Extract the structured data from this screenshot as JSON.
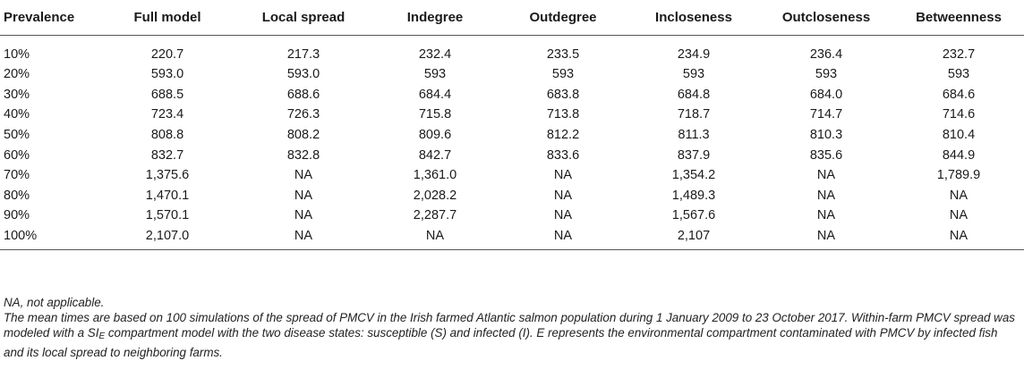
{
  "table": {
    "headers": [
      "Prevalence",
      "Full model",
      "Local spread",
      "Indegree",
      "Outdegree",
      "Incloseness",
      "Outcloseness",
      "Betweenness"
    ],
    "rows": [
      [
        "10%",
        "220.7",
        "217.3",
        "232.4",
        "233.5",
        "234.9",
        "236.4",
        "232.7"
      ],
      [
        "20%",
        "593.0",
        "593.0",
        "593",
        "593",
        "593",
        "593",
        "593"
      ],
      [
        "30%",
        "688.5",
        "688.6",
        "684.4",
        "683.8",
        "684.8",
        "684.0",
        "684.6"
      ],
      [
        "40%",
        "723.4",
        "726.3",
        "715.8",
        "713.8",
        "718.7",
        "714.7",
        "714.6"
      ],
      [
        "50%",
        "808.8",
        "808.2",
        "809.6",
        "812.2",
        "811.3",
        "810.3",
        "810.4"
      ],
      [
        "60%",
        "832.7",
        "832.8",
        "842.7",
        "833.6",
        "837.9",
        "835.6",
        "844.9"
      ],
      [
        "70%",
        "1,375.6",
        "NA",
        "1,361.0",
        "NA",
        "1,354.2",
        "NA",
        "1,789.9"
      ],
      [
        "80%",
        "1,470.1",
        "NA",
        "2,028.2",
        "NA",
        "1,489.3",
        "NA",
        "NA"
      ],
      [
        "90%",
        "1,570.1",
        "NA",
        "2,287.7",
        "NA",
        "1,567.6",
        "NA",
        "NA"
      ],
      [
        "100%",
        "2,107.0",
        "NA",
        "NA",
        "NA",
        "2,107",
        "NA",
        "NA"
      ]
    ]
  },
  "notes": {
    "abbrev": "NA, not applicable.",
    "para_before_sub": "The mean times are based on 100 simulations of the spread of PMCV in the Irish farmed Atlantic salmon population during 1 January 2009 to 23 October 2017. Within-farm PMCV spread was modeled with a SI",
    "sub": "E",
    "para_after_sub": " compartment model with the two disease states: susceptible (S) and infected (I). E represents the environmental compartment contaminated with PMCV by infected fish and its local spread to neighboring farms."
  }
}
